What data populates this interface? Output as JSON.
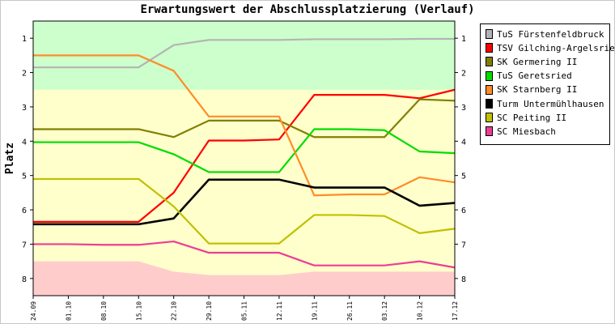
{
  "chart_data": {
    "type": "line",
    "title": "Erwartungswert der Abschlussplatzierung (Verlauf)",
    "ylabel": "Platz",
    "xlabel": "",
    "ylim": [
      0.5,
      8.5
    ],
    "y_ticks": [
      "1",
      "2",
      "3",
      "4",
      "5",
      "6",
      "7",
      "8"
    ],
    "categories": [
      "24.09",
      "01.10",
      "08.10",
      "15.10",
      "22.10",
      "29.10",
      "05.11",
      "12.11",
      "19.11",
      "26.11",
      "03.12",
      "10.12",
      "17.12"
    ],
    "zones": [
      {
        "name": "promotion",
        "color": "#ccffcc",
        "y_to": [
          2.5,
          2.5,
          2.5,
          2.5,
          2.5,
          2.5,
          2.5,
          2.5,
          2.5,
          2.5,
          2.5,
          2.5,
          2.5
        ]
      },
      {
        "name": "relegation",
        "color": "#ffcccc",
        "y_from": [
          7.5,
          7.5,
          7.5,
          7.5,
          7.8,
          7.9,
          7.9,
          7.9,
          7.8,
          7.8,
          7.8,
          7.8,
          7.8
        ]
      }
    ],
    "series": [
      {
        "name": "TuS Fürstenfeldbruck",
        "color": "#b4b4b4",
        "values": [
          1.85,
          1.85,
          1.85,
          1.85,
          1.2,
          1.05,
          1.05,
          1.05,
          1.03,
          1.03,
          1.03,
          1.02,
          1.02
        ]
      },
      {
        "name": "TSV Gilching-Argelsried",
        "color": "#ff0000",
        "values": [
          6.35,
          6.35,
          6.35,
          6.35,
          5.5,
          3.98,
          3.98,
          3.95,
          2.65,
          2.65,
          2.65,
          2.75,
          2.5
        ]
      },
      {
        "name": "SK Germering II",
        "color": "#808000",
        "values": [
          3.65,
          3.65,
          3.65,
          3.65,
          3.88,
          3.4,
          3.4,
          3.4,
          3.88,
          3.88,
          3.88,
          2.78,
          2.82
        ]
      },
      {
        "name": "TuS Geretsried",
        "color": "#00dd00",
        "values": [
          4.03,
          4.03,
          4.03,
          4.03,
          4.38,
          4.9,
          4.9,
          4.9,
          3.65,
          3.65,
          3.68,
          4.3,
          4.35
        ]
      },
      {
        "name": "SK Starnberg II",
        "color": "#ff8c28",
        "values": [
          1.5,
          1.5,
          1.5,
          1.5,
          1.95,
          3.28,
          3.28,
          3.28,
          5.58,
          5.55,
          5.55,
          5.05,
          5.2
        ]
      },
      {
        "name": "Turm Untermühlhausen",
        "color": "#000000",
        "values": [
          6.42,
          6.42,
          6.42,
          6.42,
          6.25,
          5.12,
          5.12,
          5.12,
          5.35,
          5.35,
          5.35,
          5.88,
          5.8
        ]
      },
      {
        "name": "SC Peiting II",
        "color": "#c0c000",
        "values": [
          5.1,
          5.1,
          5.1,
          5.1,
          5.9,
          6.98,
          6.98,
          6.98,
          6.15,
          6.15,
          6.18,
          6.68,
          6.55
        ]
      },
      {
        "name": "SC Miesbach",
        "color": "#ee3d96",
        "values": [
          7.0,
          7.0,
          7.02,
          7.02,
          6.92,
          7.25,
          7.25,
          7.25,
          7.62,
          7.62,
          7.62,
          7.5,
          7.68
        ]
      }
    ],
    "grid": false,
    "legend_position": "right",
    "plot_background": "#ffffcc"
  }
}
